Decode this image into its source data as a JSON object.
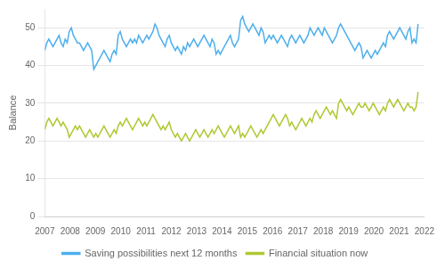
{
  "chart_data": {
    "type": "line",
    "ylabel": "Balance",
    "xlim": [
      2007,
      2022
    ],
    "ylim": [
      0,
      55
    ],
    "xticks": [
      2007,
      2008,
      2009,
      2010,
      2011,
      2012,
      2013,
      2014,
      2015,
      2016,
      2017,
      2018,
      2019,
      2020,
      2021,
      2022
    ],
    "yticks": [
      0,
      10,
      20,
      30,
      40,
      50
    ],
    "grid": "y",
    "legend": "bottom",
    "x": [
      2007,
      2007.0806,
      2007.1612,
      2007.2418,
      2007.3224,
      2007.403,
      2007.4836,
      2007.5642,
      2007.6448,
      2007.7254,
      2007.806,
      2007.8866,
      2007.9672,
      2008.0478,
      2008.1284,
      2008.209,
      2008.2896,
      2008.3702,
      2008.4508,
      2008.5314,
      2008.612,
      2008.6926,
      2008.7732,
      2008.8538,
      2008.9344,
      2009.015,
      2009.0956,
      2009.1762,
      2009.2568,
      2009.3374,
      2009.418,
      2009.4986,
      2009.5792,
      2009.6598,
      2009.7404,
      2009.821,
      2009.9016,
      2009.9822,
      2010.0628,
      2010.1434,
      2010.224,
      2010.3046,
      2010.3852,
      2010.4658,
      2010.5464,
      2010.627,
      2010.7077,
      2010.7883,
      2010.8689,
      2010.9495,
      2011.0301,
      2011.1107,
      2011.1913,
      2011.2719,
      2011.3525,
      2011.4331,
      2011.5137,
      2011.5943,
      2011.6749,
      2011.7555,
      2011.8361,
      2011.9167,
      2011.9973,
      2012.0779,
      2012.1585,
      2012.2391,
      2012.3197,
      2012.4003,
      2012.4809,
      2012.5615,
      2012.6421,
      2012.7227,
      2012.8033,
      2012.8839,
      2012.9645,
      2013.0451,
      2013.1257,
      2013.2063,
      2013.2869,
      2013.3675,
      2013.4481,
      2013.5287,
      2013.6093,
      2013.6899,
      2013.7705,
      2013.8511,
      2013.9317,
      2014.0123,
      2014.0929,
      2014.1735,
      2014.2541,
      2014.3347,
      2014.4153,
      2014.4959,
      2014.5765,
      2014.6571,
      2014.7377,
      2014.8183,
      2014.8989,
      2014.9795,
      2015.0601,
      2015.1407,
      2015.2213,
      2015.3019,
      2015.3825,
      2015.4631,
      2015.5437,
      2015.6243,
      2015.7049,
      2015.7855,
      2015.8661,
      2015.9467,
      2016.0273,
      2016.1079,
      2016.1885,
      2016.2691,
      2016.3497,
      2016.4303,
      2016.5109,
      2016.5915,
      2016.6721,
      2016.7527,
      2016.8333,
      2016.9139,
      2016.9945,
      2017.0751,
      2017.1557,
      2017.2363,
      2017.3169,
      2017.3975,
      2017.4781,
      2017.5587,
      2017.6393,
      2017.7199,
      2017.8005,
      2017.8811,
      2017.9617,
      2018.0423,
      2018.123,
      2018.2036,
      2018.2842,
      2018.3648,
      2018.4454,
      2018.526,
      2018.6066,
      2018.6872,
      2018.7678,
      2018.8484,
      2018.929,
      2019.0096,
      2019.0902,
      2019.1708,
      2019.2514,
      2019.332,
      2019.4126,
      2019.4932,
      2019.5738,
      2019.6544,
      2019.735,
      2019.8156,
      2019.8962,
      2019.9768,
      2020.0574,
      2020.138,
      2020.2186,
      2020.2992,
      2020.3798,
      2020.4604,
      2020.541,
      2020.6216,
      2020.7022,
      2020.7828,
      2020.8634,
      2020.944,
      2021.0246,
      2021.1052,
      2021.1858,
      2021.2664,
      2021.347,
      2021.4276,
      2021.5082,
      2021.5888,
      2021.6694,
      2021.75
    ],
    "series": [
      {
        "name": "Saving possibilities next 12 months",
        "color": "#4dafed",
        "values": [
          44,
          46,
          47,
          46,
          45,
          46,
          47,
          48,
          46,
          45,
          47,
          46,
          49,
          50,
          48,
          47,
          46,
          46,
          45,
          44,
          45,
          46,
          45,
          44,
          39,
          40,
          41,
          42,
          43,
          44,
          43,
          42,
          41,
          43,
          44,
          43,
          48,
          49,
          47,
          46,
          45,
          46,
          47,
          46,
          47,
          46,
          48,
          47,
          46,
          47,
          48,
          47,
          48,
          49,
          51,
          50,
          48,
          47,
          46,
          45,
          47,
          48,
          46,
          45,
          44,
          45,
          44,
          43,
          45,
          44,
          46,
          45,
          46,
          47,
          46,
          45,
          46,
          47,
          48,
          47,
          46,
          45,
          47,
          46,
          43,
          44,
          43,
          44,
          45,
          46,
          47,
          48,
          46,
          45,
          46,
          47,
          52,
          53,
          51,
          50,
          49,
          50,
          51,
          50,
          49,
          48,
          50,
          49,
          46,
          47,
          48,
          47,
          48,
          47,
          46,
          47,
          48,
          47,
          46,
          45,
          47,
          48,
          47,
          46,
          47,
          48,
          47,
          46,
          47,
          48,
          50,
          49,
          48,
          49,
          50,
          49,
          48,
          50,
          49,
          48,
          47,
          46,
          47,
          48,
          50,
          51,
          50,
          49,
          48,
          47,
          46,
          45,
          44,
          45,
          46,
          45,
          42,
          43,
          44,
          43,
          42,
          43,
          44,
          43,
          44,
          45,
          46,
          45,
          48,
          49,
          48,
          47,
          48,
          49,
          50,
          49,
          48,
          47,
          49,
          50,
          46,
          47,
          46,
          51
        ]
      },
      {
        "name": "Financial situation now",
        "color": "#b0c832",
        "values": [
          23,
          25,
          26,
          25,
          24,
          25,
          26,
          25,
          24,
          25,
          24,
          23,
          21,
          22,
          23,
          24,
          23,
          24,
          23,
          22,
          21,
          22,
          23,
          22,
          21,
          22,
          21,
          22,
          23,
          24,
          23,
          22,
          21,
          22,
          23,
          22,
          24,
          25,
          24,
          25,
          26,
          25,
          24,
          23,
          24,
          25,
          26,
          25,
          24,
          25,
          24,
          25,
          26,
          27,
          26,
          25,
          24,
          23,
          24,
          23,
          24,
          25,
          23,
          22,
          21,
          22,
          21,
          20,
          21,
          22,
          21,
          20,
          21,
          22,
          23,
          22,
          21,
          22,
          23,
          22,
          21,
          22,
          23,
          22,
          23,
          24,
          23,
          22,
          21,
          22,
          23,
          24,
          23,
          22,
          23,
          24,
          21,
          22,
          21,
          22,
          23,
          24,
          23,
          22,
          21,
          22,
          23,
          22,
          23,
          24,
          25,
          26,
          27,
          26,
          25,
          24,
          25,
          26,
          27,
          26,
          24,
          25,
          24,
          23,
          24,
          25,
          26,
          25,
          24,
          25,
          26,
          25,
          27,
          28,
          27,
          26,
          27,
          28,
          29,
          28,
          27,
          28,
          27,
          26,
          30,
          31,
          30,
          29,
          28,
          29,
          28,
          27,
          28,
          29,
          30,
          29,
          29,
          30,
          29,
          28,
          29,
          30,
          29,
          28,
          27,
          28,
          29,
          28,
          30,
          31,
          30,
          29,
          30,
          31,
          30,
          29,
          28,
          29,
          30,
          29,
          29,
          28,
          29,
          33
        ]
      }
    ]
  }
}
